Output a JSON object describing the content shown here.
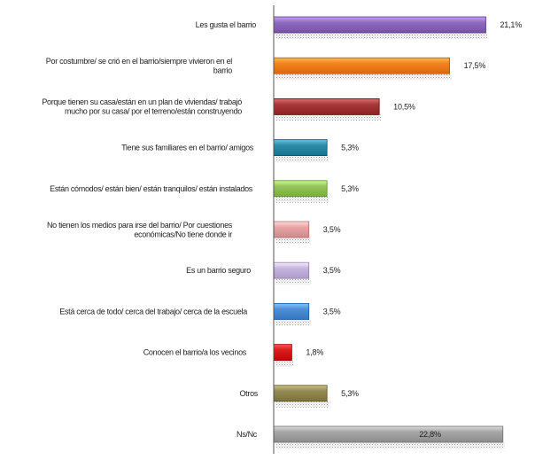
{
  "chart_data": {
    "type": "bar",
    "orientation": "horizontal",
    "title": "",
    "xlabel": "",
    "ylabel": "",
    "xlim": [
      0,
      25
    ],
    "grid": false,
    "legend": "none",
    "categories": [
      [
        "Les gusta el barrio"
      ],
      [
        "Por costumbre/ se crió en el barrio/siempre vivieron en el",
        "barrio"
      ],
      [
        "Porque tienen su casa/están en un plan de viviendas/ trabajó",
        "mucho por su casa/ por el terreno/están construyendo"
      ],
      [
        "Tiene sus familiares en el barrio/ amigos"
      ],
      [
        "Están cómodos/ están bien/ están tranquilos/ están instalados"
      ],
      [
        "No tienen los medios para irse del barrio/ Por cuestiones",
        "económicas/No tiene donde ir"
      ],
      [
        "Es un barrio seguro"
      ],
      [
        "Está cerca de todo/ cerca del trabajo/ cerca de la escuela"
      ],
      [
        "Conocen el barrio/a los vecinos"
      ],
      [
        "Otros"
      ],
      [
        "Ns/Nc"
      ]
    ],
    "values": [
      21.1,
      17.5,
      10.5,
      5.3,
      5.3,
      3.5,
      3.5,
      3.5,
      1.8,
      5.3,
      22.8
    ],
    "value_labels": [
      "21,1%",
      "17,5%",
      "10,5%",
      "5,3%",
      "5,3%",
      "3,5%",
      "3,5%",
      "3,5%",
      "1,8%",
      "5,3%",
      "22,8%"
    ],
    "colors": [
      "#8e6bbf",
      "#f58220",
      "#a8393a",
      "#2e8ca8",
      "#94c45a",
      "#e8a4a4",
      "#c5b5e0",
      "#4f8fd8",
      "#d81e1e",
      "#948a54",
      "#a6a6a6"
    ]
  }
}
